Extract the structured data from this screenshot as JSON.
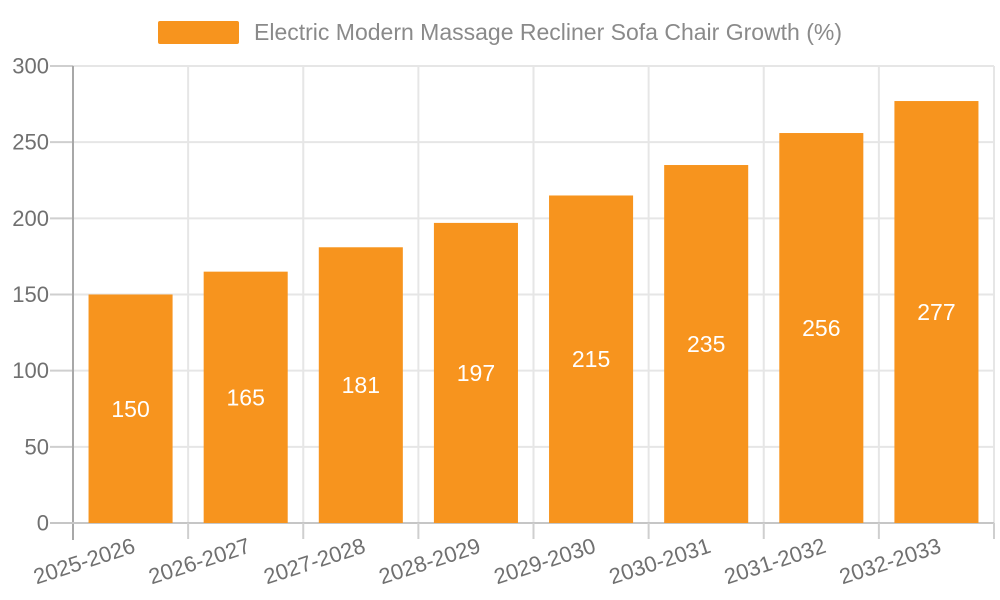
{
  "chart_data": {
    "type": "bar",
    "title": "Electric Modern Massage Recliner Sofa Chair Growth (%)",
    "legend_position": "top-center",
    "categories": [
      "2025-2026",
      "2026-2027",
      "2027-2028",
      "2028-2029",
      "2029-2030",
      "2030-2031",
      "2031-2032",
      "2032-2033"
    ],
    "values": [
      150,
      165,
      181,
      197,
      215,
      235,
      256,
      277
    ],
    "xlabel": "",
    "ylabel": "",
    "ylim": [
      0,
      300
    ],
    "yticks": [
      0,
      50,
      100,
      150,
      200,
      250,
      300
    ],
    "grid": true,
    "bar_labels_inside": true
  },
  "colors": {
    "bar": "#F7941E",
    "bar_label": "#FFFFFF",
    "legend_text": "#8A8A8A",
    "axis_label_text": "#707070",
    "gridline": "#E6E6E6",
    "y_axis_line": "#A8A8A8",
    "x_axis_line": "#C6C6C6",
    "tick": "#CFCFCF",
    "background": "#FFFFFF"
  }
}
